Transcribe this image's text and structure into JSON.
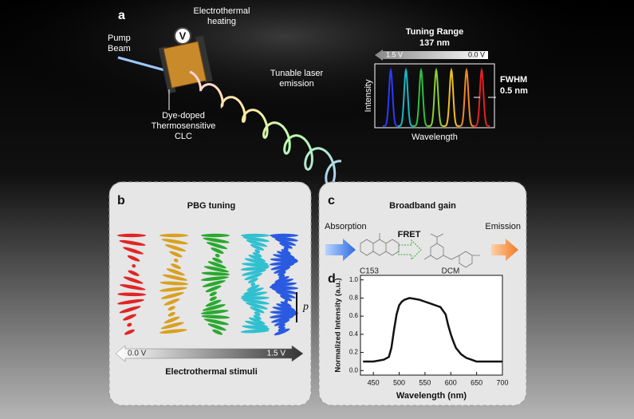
{
  "panel_a": {
    "label": "a",
    "pump_beam": [
      "Pump",
      "Beam"
    ],
    "voltmeter": "V",
    "heating": [
      "Electrothermal",
      "heating"
    ],
    "emission": [
      "Tunable laser",
      "emission"
    ],
    "material": [
      "Dye-doped",
      "Thermosensitive",
      "CLC"
    ],
    "tuning_range": [
      "Tuning Range",
      "137 nm"
    ],
    "voltage_left": "1.5 V",
    "voltage_right": "0.0 V",
    "fwhm": [
      "FWHM",
      "0.5 nm"
    ],
    "y_label": "Intensity",
    "x_label": "Wavelength"
  },
  "panel_b": {
    "label": "b",
    "title": "PBG tuning",
    "pitch": "p",
    "voltage_left": "0.0 V",
    "voltage_right": "1.5 V",
    "caption": "Electrothermal stimuli"
  },
  "panel_c": {
    "label": "c",
    "title": "Broadband gain",
    "absorption": "Absorption",
    "fret": "FRET",
    "emission": "Emission",
    "donor": "C153",
    "acceptor": "DCM"
  },
  "panel_d": {
    "type": "line",
    "label": "d",
    "y_label": "Normalized Intensity (a.u.)",
    "x_label": "Wavelength (nm)",
    "x": [
      430,
      450,
      470,
      480,
      485,
      490,
      495,
      500,
      505,
      510,
      520,
      530,
      540,
      550,
      560,
      570,
      580,
      590,
      595,
      600,
      605,
      610,
      620,
      630,
      640,
      650,
      670,
      690,
      700
    ],
    "values": [
      0.1,
      0.1,
      0.12,
      0.15,
      0.25,
      0.45,
      0.62,
      0.72,
      0.76,
      0.78,
      0.8,
      0.79,
      0.78,
      0.76,
      0.74,
      0.72,
      0.7,
      0.62,
      0.5,
      0.4,
      0.32,
      0.25,
      0.18,
      0.14,
      0.12,
      0.1,
      0.1,
      0.1,
      0.1
    ],
    "color": "#111111",
    "xlim": [
      425,
      700
    ],
    "ylim": [
      -0.05,
      1.05
    ],
    "xticks": [
      450,
      500,
      550,
      600,
      650,
      700
    ],
    "yticks": [
      {
        "value": 0,
        "label": "0.0"
      },
      0.2,
      0.4,
      0.6,
      0.8,
      {
        "value": 1,
        "label": "1.0"
      }
    ]
  }
}
